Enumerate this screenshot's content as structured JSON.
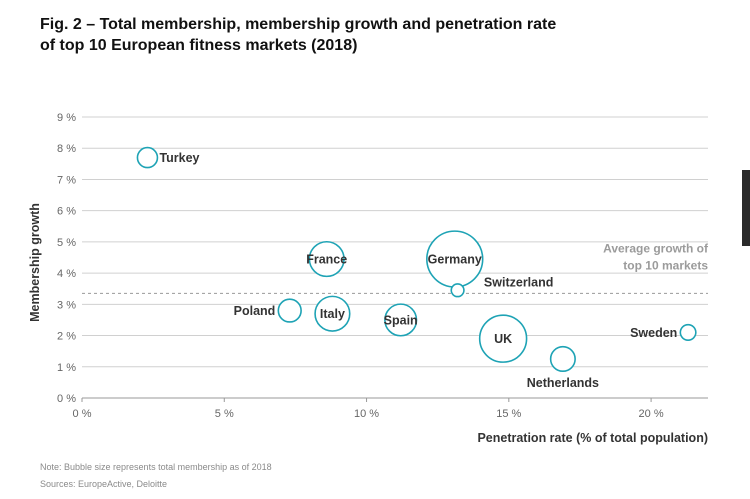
{
  "title": {
    "line1": "Fig. 2 – Total membership, membership growth and penetration rate",
    "line2": "of top 10 European fitness markets (2018)"
  },
  "notes": {
    "size_note": "Note: Bubble size represents total membership as of 2018",
    "sources": "Sources: EuropeActive, Deloitte"
  },
  "colors": {
    "bubble_stroke": "#1ea3b5",
    "grid": "#d0d0d0",
    "average_line": "#9a9a9a",
    "text": "#333333",
    "tick": "#666666"
  },
  "chart_data": {
    "type": "scatter",
    "subtype": "bubble",
    "xlabel": "Penetration rate (% of total population)",
    "ylabel": "Membership growth",
    "xlim": [
      0,
      22
    ],
    "ylim": [
      0,
      9
    ],
    "xticks": [
      0,
      5,
      10,
      15,
      20
    ],
    "xtick_labels": [
      "0 %",
      "5 %",
      "10 %",
      "15 %",
      "20 %"
    ],
    "yticks": [
      0,
      1,
      2,
      3,
      4,
      5,
      6,
      7,
      8,
      9
    ],
    "ytick_labels": [
      "0 %",
      "1 %",
      "2 %",
      "3 %",
      "4 %",
      "5 %",
      "6 %",
      "7 %",
      "8 %",
      "9 %"
    ],
    "grid": true,
    "average_growth": {
      "value": 3.35,
      "label_line1": "Average growth of",
      "label_line2": "top 10 markets"
    },
    "points": [
      {
        "name": "Turkey",
        "x": 2.3,
        "y": 7.7,
        "size": 1.0,
        "label_side": "right"
      },
      {
        "name": "France",
        "x": 8.6,
        "y": 4.45,
        "size": 3.0,
        "label_side": "inside"
      },
      {
        "name": "Germany",
        "x": 13.1,
        "y": 4.45,
        "size": 7.8,
        "label_side": "inside"
      },
      {
        "name": "Switzerland",
        "x": 13.2,
        "y": 3.45,
        "size": 0.4,
        "label_side": "right-below"
      },
      {
        "name": "Poland",
        "x": 7.3,
        "y": 2.8,
        "size": 1.3,
        "label_side": "left"
      },
      {
        "name": "Italy",
        "x": 8.8,
        "y": 2.7,
        "size": 3.0,
        "label_side": "inside"
      },
      {
        "name": "Spain",
        "x": 11.2,
        "y": 2.5,
        "size": 2.5,
        "label_side": "inside"
      },
      {
        "name": "UK",
        "x": 14.8,
        "y": 1.9,
        "size": 5.5,
        "label_side": "inside"
      },
      {
        "name": "Netherlands",
        "x": 16.9,
        "y": 1.25,
        "size": 1.5,
        "label_side": "below"
      },
      {
        "name": "Sweden",
        "x": 21.3,
        "y": 2.1,
        "size": 0.6,
        "label_side": "left"
      }
    ]
  }
}
